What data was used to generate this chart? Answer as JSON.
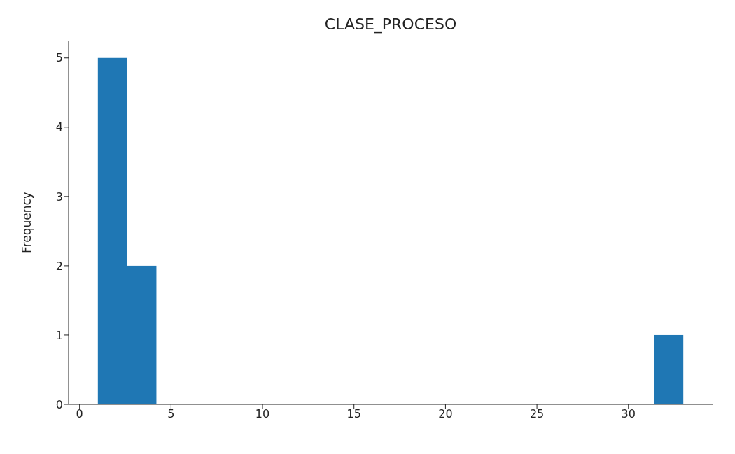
{
  "chart_data": {
    "type": "histogram",
    "title": "CLASE_PROCESO",
    "ylabel": "Frequency",
    "bins": [
      1,
      2.6,
      4.2,
      5.8,
      7.4,
      9,
      10.6,
      12.2,
      13.8,
      15.4,
      17,
      18.6,
      20.2,
      21.8,
      23.4,
      25,
      26.6,
      28.2,
      29.8,
      31.4,
      33
    ],
    "values": [
      5,
      2,
      0,
      0,
      0,
      0,
      0,
      0,
      0,
      0,
      0,
      0,
      0,
      0,
      0,
      0,
      0,
      0,
      0,
      1
    ],
    "color": "#1f77b4",
    "xlim": [
      -0.6,
      34.6
    ],
    "xticks": [
      0,
      5,
      10,
      15,
      20,
      25,
      30
    ],
    "ylim": [
      0,
      5.25
    ],
    "yticks": [
      0,
      1,
      2,
      3,
      4,
      5
    ],
    "grid": false,
    "legend": false
  }
}
